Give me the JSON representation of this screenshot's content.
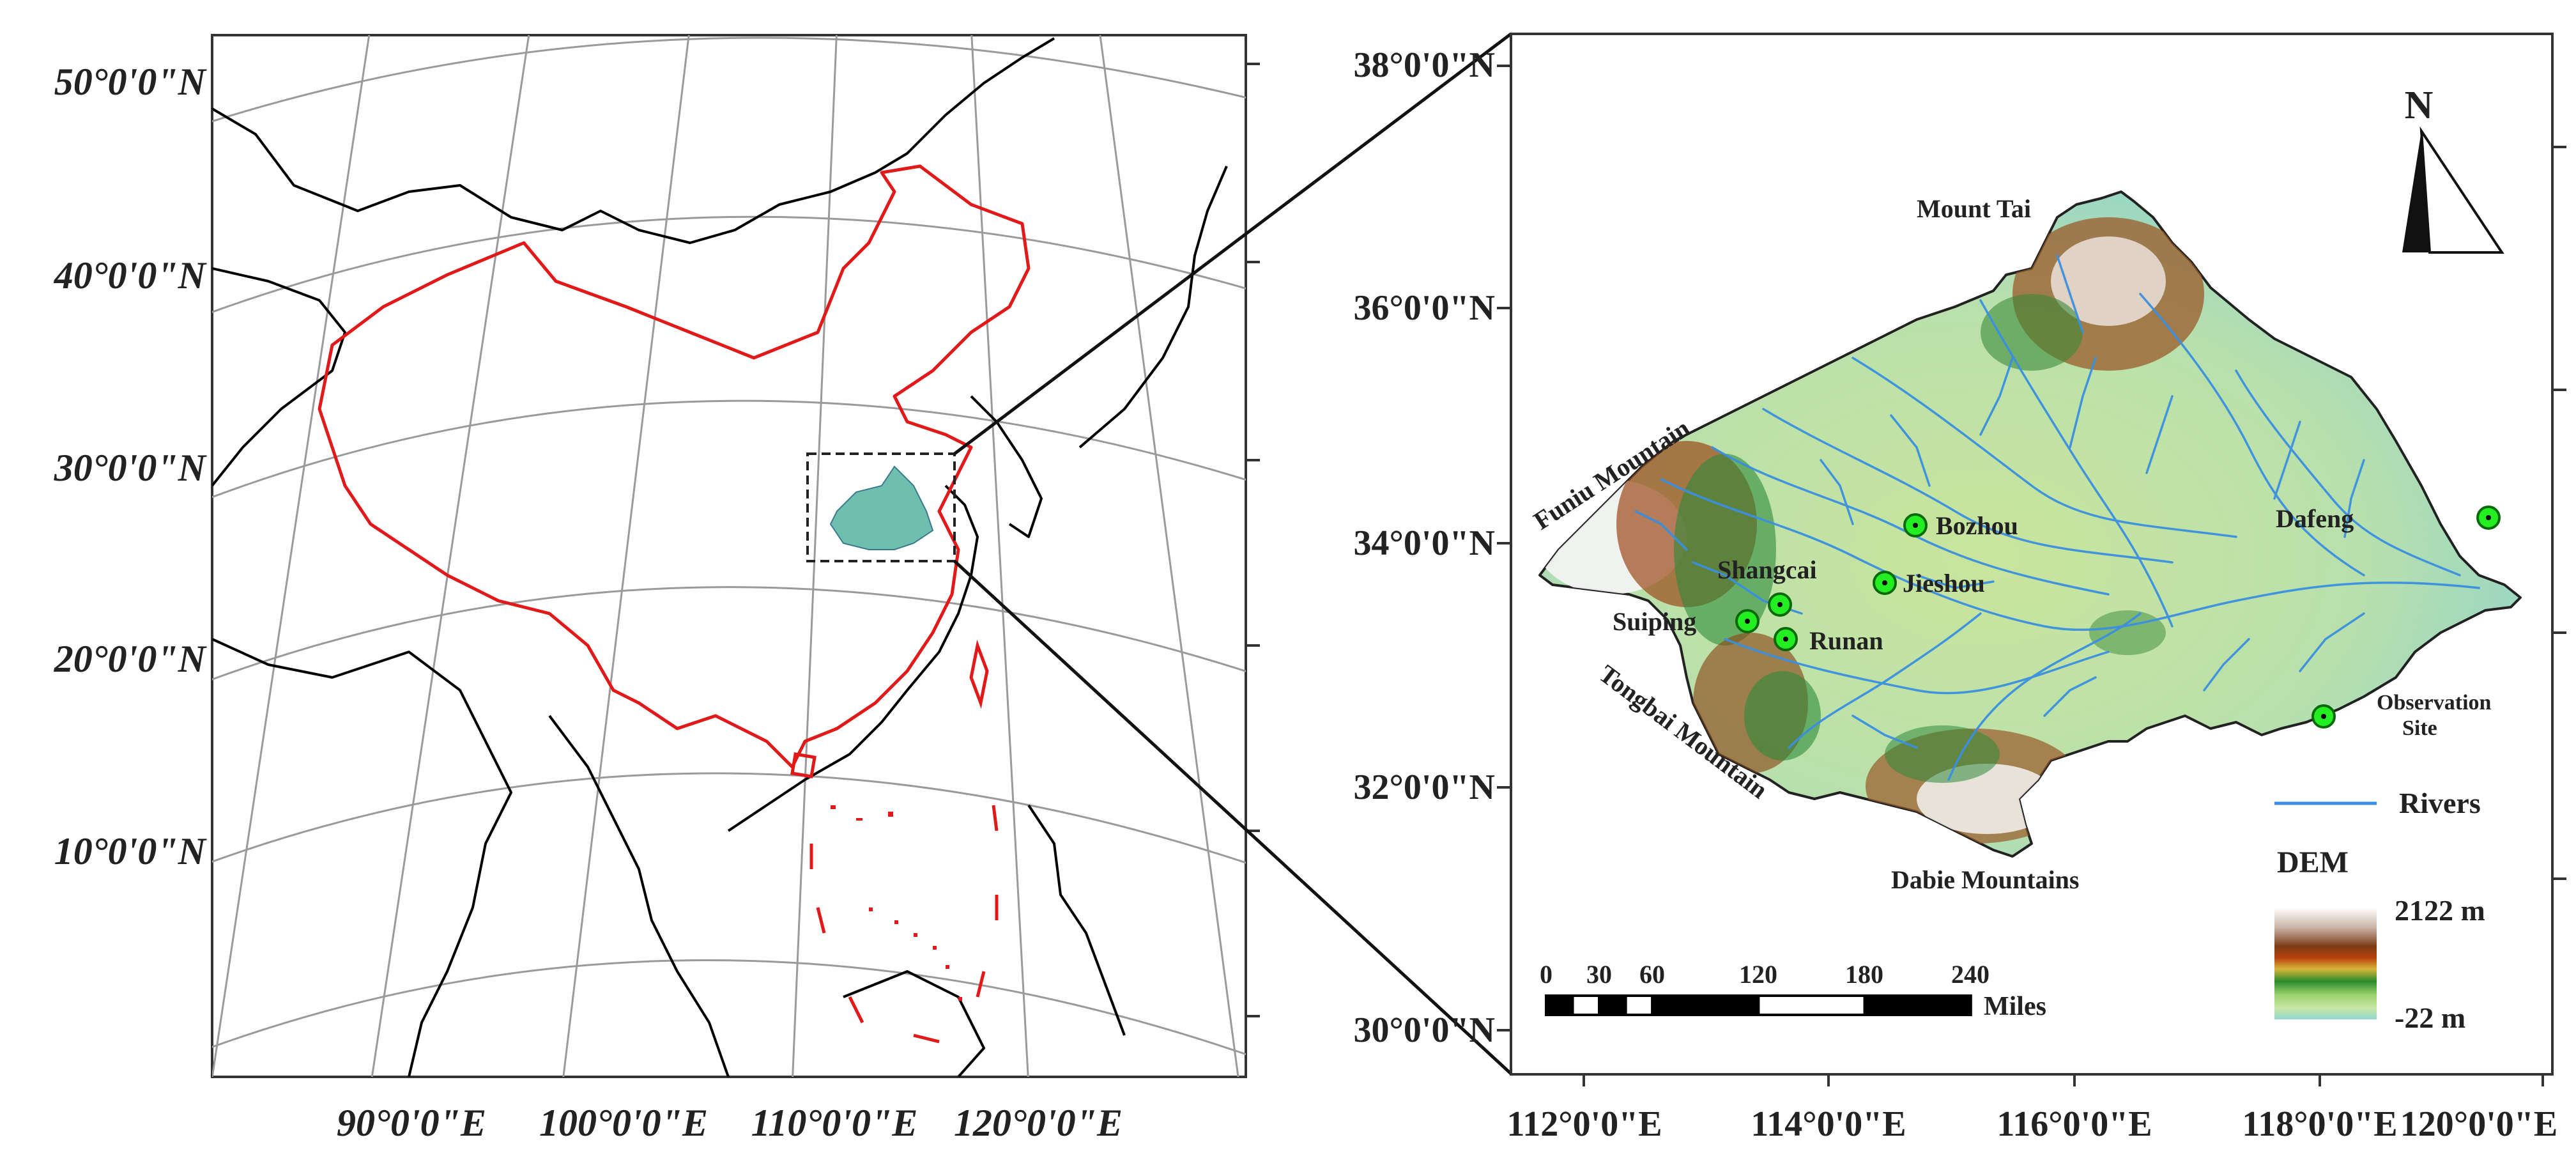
{
  "colors": {
    "china_border": "#e11919",
    "coast": "#000000",
    "grid": "#9a9a9a",
    "river": "#3a8fe0",
    "site_fill": "#22ee22",
    "site_ring": "#0a6a0a",
    "frame": "#222222"
  },
  "left_map": {
    "lat_labels": [
      "50°0'0\"N",
      "40°0'0\"N",
      "30°0'0\"N",
      "20°0'0\"N",
      "10°0'0\"N"
    ],
    "lon_labels": [
      "90°0'0\"E",
      "100°0'0\"E",
      "110°0'0\"E",
      "120°0'0\"E"
    ]
  },
  "right_map": {
    "lat_labels": [
      "38°0'0\"N",
      "36°0'0\"N",
      "34°0'0\"N",
      "32°0'0\"N",
      "30°0'0\"N"
    ],
    "lon_labels": [
      "112°0'0\"E",
      "114°0'0\"E",
      "116°0'0\"E",
      "118°0'0\"E",
      "120°0'0\"E"
    ],
    "region_labels": {
      "mount_tai": "Mount Tai",
      "funiu": "Funiu Mountain",
      "tongbai": "Tongbai Mountain",
      "dabie": "Dabie Mountains"
    },
    "sites": [
      {
        "name": "Bozhou",
        "lat": 34.2,
        "lon": 115.0
      },
      {
        "name": "Jieshou",
        "lat": 33.65,
        "lon": 114.7
      },
      {
        "name": "Shangcai",
        "lat": 33.5,
        "lon": 113.75
      },
      {
        "name": "Suiping",
        "lat": 33.35,
        "lon": 113.45
      },
      {
        "name": "Runan",
        "lat": 33.15,
        "lon": 113.8
      },
      {
        "name": "Dafeng",
        "lat": 34.2,
        "lon": 119.45
      }
    ],
    "north_arrow": "N",
    "legend": {
      "site_label_line1": "Observation",
      "site_label_line2": "Site",
      "rivers_label": "Rivers",
      "dem_title": "DEM",
      "dem_max": "2122 m",
      "dem_min": "-22 m"
    },
    "scale_bar": {
      "ticks": [
        "0",
        "30",
        "60",
        "120",
        "180",
        "240"
      ],
      "unit": "Miles"
    }
  }
}
